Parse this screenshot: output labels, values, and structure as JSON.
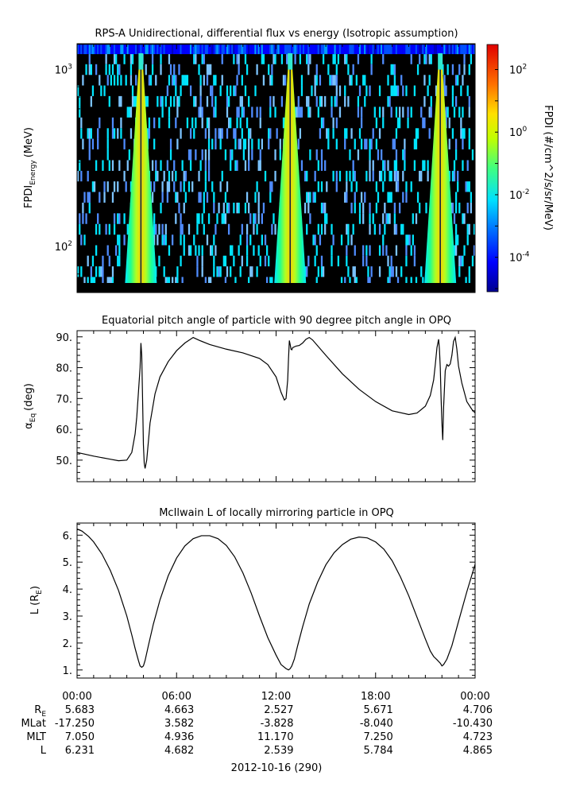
{
  "chart_data": [
    {
      "type": "heatmap",
      "title": "RPS-A Unidirectional, differential flux vs energy (Isotropic assumption)",
      "ylabel_main": "FPDI",
      "ylabel_sub": "Energy",
      "ylabel_unit": "(MeV)",
      "yscale": "log",
      "ylim": [
        55,
        1400
      ],
      "yticks": [
        {
          "v": 1000,
          "base": "10",
          "exp": "3"
        },
        {
          "v": 100,
          "base": "10",
          "exp": "2"
        }
      ],
      "colorbar": {
        "label": "FPDI (#/cm^2/s/sr/MeV)",
        "scale": "log",
        "range": [
          -5.1,
          2.8
        ],
        "ticks": [
          {
            "v": 2,
            "base": "10",
            "exp": "2"
          },
          {
            "v": 0,
            "base": "10",
            "exp": "0"
          },
          {
            "v": -2,
            "base": "10",
            "exp": "-2"
          },
          {
            "v": -4,
            "base": "10",
            "exp": "-4"
          }
        ]
      },
      "energies_mev": [
        1300,
        1150,
        1000,
        870,
        760,
        660,
        575,
        500,
        435,
        380,
        330,
        287,
        250,
        218,
        190,
        165,
        144,
        125,
        109,
        95,
        83,
        72,
        63
      ],
      "belt_passes_hours": [
        3.85,
        12.85,
        21.9
      ]
    },
    {
      "type": "line",
      "title": "Equatorial pitch angle of particle with 90 degree pitch angle in OPQ",
      "ylabel_main": "α",
      "ylabel_sub": "Eq",
      "ylabel_unit": "(deg)",
      "ylim": [
        43,
        92
      ],
      "yticks": [
        {
          "v": 90,
          "label": "90."
        },
        {
          "v": 80,
          "label": "80."
        },
        {
          "v": 70,
          "label": "70."
        },
        {
          "v": 60,
          "label": "60."
        },
        {
          "v": 50,
          "label": "50."
        }
      ],
      "x": [
        0,
        1,
        2,
        2.5,
        3.0,
        3.3,
        3.5,
        3.6,
        3.7,
        3.8,
        3.85,
        3.9,
        3.95,
        4.0,
        4.05,
        4.1,
        4.2,
        4.4,
        4.7,
        5.0,
        5.5,
        6.0,
        6.5,
        7.0,
        7.4,
        8.0,
        9.0,
        10.0,
        11.0,
        11.5,
        12.0,
        12.3,
        12.5,
        12.6,
        12.7,
        12.75,
        12.8,
        12.85,
        12.9,
        12.95,
        13.0,
        13.2,
        13.4,
        13.6,
        13.8,
        14.0,
        14.2,
        15.0,
        16.0,
        17.0,
        18.0,
        19.0,
        20.0,
        20.5,
        21.0,
        21.3,
        21.5,
        21.6,
        21.7,
        21.8,
        21.85,
        21.9,
        21.95,
        22.0,
        22.05,
        22.1,
        22.2,
        22.3,
        22.4,
        22.5,
        22.6,
        22.7,
        22.8,
        22.9,
        23.0,
        23.2,
        23.5,
        23.8,
        24.0
      ],
      "y": [
        52.5,
        51.3,
        50.3,
        49.8,
        50.0,
        52.5,
        58.5,
        64,
        72,
        80,
        88,
        84,
        70,
        55,
        49,
        47.3,
        50,
        62,
        71.5,
        77,
        82,
        85.5,
        88,
        89.8,
        88.8,
        87.5,
        86,
        84.8,
        83,
        81,
        77,
        72,
        69.5,
        70,
        76,
        83,
        88.8,
        87.5,
        86,
        85.8,
        86.5,
        87,
        87.2,
        88,
        89.2,
        89.8,
        89,
        84,
        78,
        73,
        69,
        66,
        64.8,
        65.3,
        67.5,
        71,
        76,
        81,
        86.5,
        89.2,
        86,
        80,
        70,
        62,
        56.5,
        67,
        79,
        81,
        80.5,
        81.2,
        84,
        88.5,
        89.8,
        86,
        80.5,
        75,
        69,
        66.5,
        65.3
      ]
    },
    {
      "type": "line",
      "title": "McIlwain L of locally mirroring particle in OPQ",
      "ylabel_main": "L",
      "ylabel_sub": "E",
      "ylabel_unit": "(R",
      "ylim": [
        0.7,
        6.45
      ],
      "yticks": [
        {
          "v": 6,
          "label": "6."
        },
        {
          "v": 5,
          "label": "5."
        },
        {
          "v": 4,
          "label": "4."
        },
        {
          "v": 3,
          "label": "3."
        },
        {
          "v": 2,
          "label": "2."
        },
        {
          "v": 1,
          "label": "1."
        }
      ],
      "x": [
        0,
        0.3,
        0.7,
        1.0,
        1.5,
        2.0,
        2.5,
        3.0,
        3.3,
        3.5,
        3.7,
        3.8,
        3.9,
        4.0,
        4.1,
        4.3,
        4.6,
        5.0,
        5.5,
        6.0,
        6.5,
        7.0,
        7.5,
        8.0,
        8.5,
        9.0,
        9.5,
        10.0,
        10.5,
        11.0,
        11.5,
        12.0,
        12.3,
        12.6,
        12.75,
        12.85,
        12.95,
        13.1,
        13.3,
        13.6,
        14.0,
        14.5,
        15.0,
        15.5,
        16.0,
        16.5,
        17.0,
        17.5,
        18.0,
        18.5,
        19.0,
        19.5,
        20.0,
        20.5,
        21.0,
        21.3,
        21.5,
        21.7,
        21.9,
        22.0,
        22.1,
        22.3,
        22.6,
        23.0,
        23.5,
        24.0
      ],
      "y": [
        6.23,
        6.15,
        5.95,
        5.75,
        5.3,
        4.7,
        3.95,
        3.0,
        2.3,
        1.8,
        1.35,
        1.15,
        1.1,
        1.15,
        1.35,
        1.9,
        2.7,
        3.6,
        4.5,
        5.15,
        5.6,
        5.87,
        5.98,
        5.98,
        5.87,
        5.62,
        5.2,
        4.6,
        3.85,
        3.0,
        2.2,
        1.55,
        1.2,
        1.05,
        1.0,
        1.05,
        1.15,
        1.4,
        1.9,
        2.6,
        3.45,
        4.25,
        4.9,
        5.35,
        5.65,
        5.85,
        5.93,
        5.9,
        5.75,
        5.48,
        5.05,
        4.45,
        3.75,
        2.95,
        2.15,
        1.7,
        1.5,
        1.38,
        1.25,
        1.15,
        1.2,
        1.4,
        1.9,
        2.8,
        3.9,
        4.92
      ]
    }
  ],
  "x_axis": {
    "ticks": [
      "00:00",
      "06:00",
      "12:00",
      "18:00",
      "00:00"
    ],
    "tick_hours": [
      0,
      6,
      12,
      18,
      24
    ],
    "date_label": "2012-10-16 (290)"
  },
  "ephemeris": {
    "rows": [
      {
        "label_main": "R",
        "label_sub": "E",
        "values": [
          "5.683",
          "4.663",
          "2.527",
          "5.671",
          "4.706"
        ]
      },
      {
        "label_main": "MLat",
        "label_sub": "",
        "values": [
          "-17.250",
          "3.582",
          "-3.828",
          "-8.040",
          "-10.430"
        ]
      },
      {
        "label_main": "MLT",
        "label_sub": "",
        "values": [
          "7.050",
          "4.936",
          "11.170",
          "7.250",
          "4.723"
        ]
      },
      {
        "label_main": "L",
        "label_sub": "",
        "values": [
          "6.231",
          "4.682",
          "2.539",
          "5.784",
          "4.865"
        ]
      }
    ]
  },
  "colors": {
    "frame": "#000000",
    "heatmap_background": "#000000",
    "line": "#000000"
  }
}
